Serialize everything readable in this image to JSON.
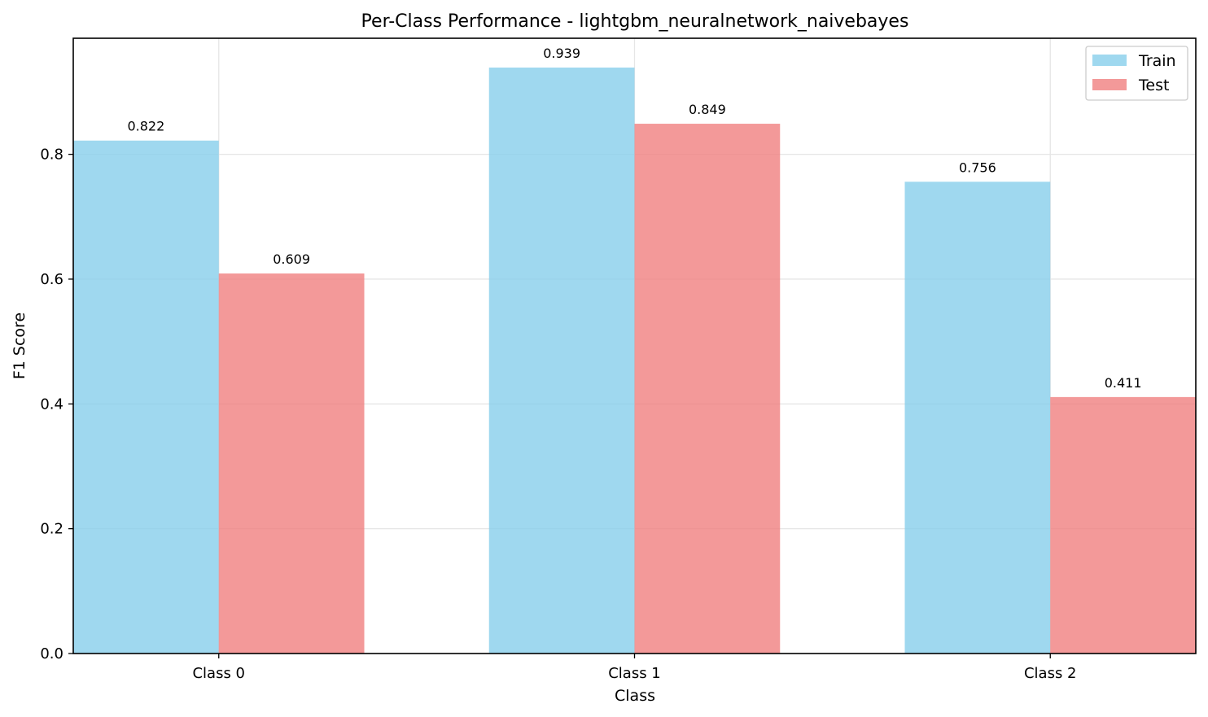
{
  "chart_data": {
    "type": "bar",
    "title": "Per-Class Performance - lightgbm_neuralnetwork_naivebayes",
    "xlabel": "Class",
    "ylabel": "F1 Score",
    "categories": [
      "Class 0",
      "Class 1",
      "Class 2"
    ],
    "series": [
      {
        "name": "Train",
        "values": [
          0.822,
          0.939,
          0.756
        ],
        "labels": [
          "0.822",
          "0.939",
          "0.756"
        ],
        "color": "#87ceeb"
      },
      {
        "name": "Test",
        "values": [
          0.609,
          0.849,
          0.411
        ],
        "labels": [
          "0.609",
          "0.849",
          "0.411"
        ],
        "color": "#f08080"
      }
    ],
    "yticks": [
      0.0,
      0.2,
      0.4,
      0.6,
      0.8
    ],
    "ytick_labels": [
      "0.0",
      "0.2",
      "0.4",
      "0.6",
      "0.8"
    ],
    "ylim": [
      0,
      0.986
    ],
    "grid": true,
    "legend_position": "top-right"
  }
}
